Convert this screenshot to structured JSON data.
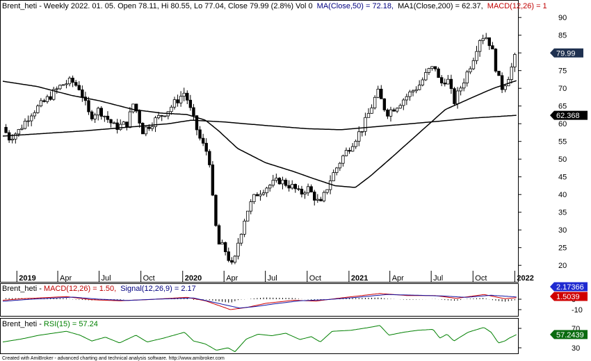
{
  "header": {
    "price_title": "Brent_heti - Weekly 2022. 01. 05. Open 78.11, Hi 80.55, Lo 77.04, Close 79.99 (2.8%) Vol 0",
    "ma50_label": "MA(Close,50) = 72.18,",
    "ma200_label": "MA1(Close,200) = 62.37,",
    "macd_short": "MACD(12,26) = 1",
    "macd_panel_prefix": "Brent_heti - ",
    "macd_label": "MACD(12,26) = 1.50,",
    "signal_label": "Signal(12,26,9) = 2.17",
    "rsi_panel_prefix": "Brent_heti - ",
    "rsi_label": "RSI(15) = 57.24"
  },
  "footer": "Created with AmiBroker - advanced charting and technical analysis software. http://www.amibroker.com",
  "colors": {
    "candle_up": "#ffffff",
    "candle_down": "#000000",
    "ma": "#000000",
    "macd": "#d00000",
    "signal": "#1010a0",
    "rsi": "#008000",
    "badge_price": "#1f3150",
    "badge_ma": "#000000",
    "badge_signal": "#1f2ad0",
    "badge_macd": "#d00000",
    "badge_rsi": "#0a6b10",
    "header_blue": "#000080",
    "header_red": "#c00000",
    "header_green": "#008000"
  },
  "chart_data": [
    {
      "type": "candlestick",
      "title": "Brent_heti - Weekly",
      "ylim": [
        15,
        92
      ],
      "y_ticks": [
        20,
        25,
        30,
        35,
        40,
        45,
        50,
        55,
        60,
        65,
        70,
        75,
        80,
        85,
        90
      ],
      "x_ticks": [
        {
          "label": "2019",
          "date": "2019-01-01",
          "bold": true
        },
        {
          "label": "Apr",
          "date": "2019-04-01",
          "bold": false
        },
        {
          "label": "Jul",
          "date": "2019-07-01",
          "bold": false
        },
        {
          "label": "Oct",
          "date": "2019-10-01",
          "bold": false
        },
        {
          "label": "2020",
          "date": "2020-01-01",
          "bold": true
        },
        {
          "label": "Apr",
          "date": "2020-04-01",
          "bold": false
        },
        {
          "label": "Jul",
          "date": "2020-07-01",
          "bold": false
        },
        {
          "label": "Oct",
          "date": "2020-10-01",
          "bold": false
        },
        {
          "label": "2021",
          "date": "2021-01-01",
          "bold": true
        },
        {
          "label": "Apr",
          "date": "2021-04-01",
          "bold": false
        },
        {
          "label": "Jul",
          "date": "2021-07-01",
          "bold": false
        },
        {
          "label": "Oct",
          "date": "2021-10-01",
          "bold": false
        },
        {
          "label": "2022",
          "date": "2022-01-01",
          "bold": true
        }
      ],
      "close_keypoints": [
        [
          "2018-12-01",
          59
        ],
        [
          "2018-12-15",
          56
        ],
        [
          "2019-01-05",
          58
        ],
        [
          "2019-02-01",
          63
        ],
        [
          "2019-03-01",
          66
        ],
        [
          "2019-04-10",
          71
        ],
        [
          "2019-05-01",
          72
        ],
        [
          "2019-05-20",
          70
        ],
        [
          "2019-06-10",
          62
        ],
        [
          "2019-07-01",
          64
        ],
        [
          "2019-08-05",
          59
        ],
        [
          "2019-09-01",
          60
        ],
        [
          "2019-09-15",
          66
        ],
        [
          "2019-10-05",
          58
        ],
        [
          "2019-11-01",
          61
        ],
        [
          "2019-12-01",
          64
        ],
        [
          "2020-01-06",
          69
        ],
        [
          "2020-01-20",
          63
        ],
        [
          "2020-02-10",
          55
        ],
        [
          "2020-02-28",
          51
        ],
        [
          "2020-03-10",
          34
        ],
        [
          "2020-03-20",
          26
        ],
        [
          "2020-04-01",
          25
        ],
        [
          "2020-04-21",
          19
        ],
        [
          "2020-05-01",
          26
        ],
        [
          "2020-05-20",
          35
        ],
        [
          "2020-06-10",
          40
        ],
        [
          "2020-07-01",
          42
        ],
        [
          "2020-08-01",
          44
        ],
        [
          "2020-09-01",
          42
        ],
        [
          "2020-09-15",
          40
        ],
        [
          "2020-10-01",
          42
        ],
        [
          "2020-10-30",
          37
        ],
        [
          "2020-11-20",
          44
        ],
        [
          "2020-12-15",
          50
        ],
        [
          "2021-01-05",
          54
        ],
        [
          "2021-02-01",
          59
        ],
        [
          "2021-03-05",
          69
        ],
        [
          "2021-03-25",
          63
        ],
        [
          "2021-04-15",
          65
        ],
        [
          "2021-05-10",
          68
        ],
        [
          "2021-06-05",
          71
        ],
        [
          "2021-06-25",
          75
        ],
        [
          "2021-07-10",
          76
        ],
        [
          "2021-07-20",
          71
        ],
        [
          "2021-08-05",
          73
        ],
        [
          "2021-08-20",
          66
        ],
        [
          "2021-09-10",
          72
        ],
        [
          "2021-09-30",
          78
        ],
        [
          "2021-10-15",
          84
        ],
        [
          "2021-10-28",
          85
        ],
        [
          "2021-11-10",
          82
        ],
        [
          "2021-11-25",
          73
        ],
        [
          "2021-12-05",
          70
        ],
        [
          "2021-12-20",
          74
        ],
        [
          "2022-01-05",
          79.99
        ]
      ],
      "ma50_keypoints": [
        [
          "2018-12-01",
          72
        ],
        [
          "2019-02-15",
          70.5
        ],
        [
          "2019-05-01",
          68
        ],
        [
          "2019-07-01",
          66.5
        ],
        [
          "2019-09-15",
          64
        ],
        [
          "2019-11-15",
          63
        ],
        [
          "2020-01-10",
          62.6
        ],
        [
          "2020-02-20",
          61
        ],
        [
          "2020-03-20",
          58
        ],
        [
          "2020-05-01",
          53
        ],
        [
          "2020-07-01",
          49
        ],
        [
          "2020-09-01",
          46.5
        ],
        [
          "2020-10-15",
          44.5
        ],
        [
          "2020-12-01",
          42.5
        ],
        [
          "2021-01-15",
          42
        ],
        [
          "2021-02-15",
          45
        ],
        [
          "2021-04-01",
          50
        ],
        [
          "2021-06-01",
          57
        ],
        [
          "2021-08-01",
          64
        ],
        [
          "2021-10-01",
          67.5
        ],
        [
          "2021-11-15",
          70
        ],
        [
          "2022-01-05",
          72.18
        ]
      ],
      "ma200_keypoints": [
        [
          "2018-12-01",
          56.5
        ],
        [
          "2019-06-01",
          58
        ],
        [
          "2019-12-01",
          60
        ],
        [
          "2020-01-20",
          61
        ],
        [
          "2020-04-01",
          60.5
        ],
        [
          "2020-07-01",
          59.5
        ],
        [
          "2020-10-01",
          58.6
        ],
        [
          "2020-12-15",
          58.3
        ],
        [
          "2021-04-01",
          59.5
        ],
        [
          "2021-07-01",
          60.5
        ],
        [
          "2021-10-01",
          61.6
        ],
        [
          "2022-01-05",
          62.37
        ]
      ],
      "last_close": "79.99",
      "last_ma200": "62.368"
    },
    {
      "type": "line",
      "title": "MACD(12,26)",
      "series": [
        {
          "name": "MACD(12,26)",
          "keypoints": [
            [
              "2018-12-01",
              -1
            ],
            [
              "2019-01-15",
              0.5
            ],
            [
              "2019-04-20",
              2.5
            ],
            [
              "2019-06-15",
              -0.5
            ],
            [
              "2019-08-15",
              -1.5
            ],
            [
              "2019-10-20",
              -0.3
            ],
            [
              "2020-01-10",
              1.8
            ],
            [
              "2020-02-20",
              -1.5
            ],
            [
              "2020-04-15",
              -10
            ],
            [
              "2020-05-20",
              -8
            ],
            [
              "2020-07-01",
              -4
            ],
            [
              "2020-09-01",
              -1
            ],
            [
              "2020-10-20",
              -1.8
            ],
            [
              "2020-12-10",
              1
            ],
            [
              "2021-03-10",
              5.5
            ],
            [
              "2021-05-10",
              3.5
            ],
            [
              "2021-07-10",
              3.5
            ],
            [
              "2021-08-25",
              0.8
            ],
            [
              "2021-10-25",
              4.5
            ],
            [
              "2021-12-10",
              0.5
            ],
            [
              "2022-01-05",
              1.5
            ]
          ]
        },
        {
          "name": "Signal(12,26,9)",
          "keypoints": [
            [
              "2018-12-01",
              -2
            ],
            [
              "2019-02-01",
              0
            ],
            [
              "2019-05-05",
              2
            ],
            [
              "2019-07-01",
              0
            ],
            [
              "2019-09-01",
              -1.2
            ],
            [
              "2019-11-01",
              0
            ],
            [
              "2020-01-25",
              1.2
            ],
            [
              "2020-03-10",
              -3
            ],
            [
              "2020-05-05",
              -8.5
            ],
            [
              "2020-06-10",
              -7
            ],
            [
              "2020-07-20",
              -4.5
            ],
            [
              "2020-09-15",
              -1.5
            ],
            [
              "2020-11-10",
              -0.5
            ],
            [
              "2021-01-10",
              1.5
            ],
            [
              "2021-03-25",
              4.5
            ],
            [
              "2021-06-01",
              3.8
            ],
            [
              "2021-08-01",
              3
            ],
            [
              "2021-09-15",
              1.8
            ],
            [
              "2021-11-10",
              3.8
            ],
            [
              "2022-01-05",
              2.17
            ]
          ]
        }
      ],
      "last_macd": "1.5039",
      "last_signal": "2.17366",
      "y_ticks": [
        0,
        -10
      ]
    },
    {
      "type": "line",
      "title": "RSI(15)",
      "series": [
        {
          "name": "RSI(15)",
          "keypoints": [
            [
              "2018-12-01",
              42
            ],
            [
              "2019-01-10",
              48
            ],
            [
              "2019-02-20",
              56
            ],
            [
              "2019-04-20",
              64
            ],
            [
              "2019-05-20",
              56
            ],
            [
              "2019-06-15",
              44
            ],
            [
              "2019-07-15",
              52
            ],
            [
              "2019-08-15",
              40
            ],
            [
              "2019-09-20",
              56
            ],
            [
              "2019-10-15",
              42
            ],
            [
              "2019-11-20",
              50
            ],
            [
              "2020-01-05",
              62
            ],
            [
              "2020-01-25",
              44
            ],
            [
              "2020-02-20",
              38
            ],
            [
              "2020-03-15",
              25
            ],
            [
              "2020-04-10",
              30
            ],
            [
              "2020-04-25",
              22
            ],
            [
              "2020-05-20",
              48
            ],
            [
              "2020-06-15",
              58
            ],
            [
              "2020-07-15",
              55
            ],
            [
              "2020-08-15",
              60
            ],
            [
              "2020-09-15",
              47
            ],
            [
              "2020-10-10",
              53
            ],
            [
              "2020-10-30",
              42
            ],
            [
              "2020-11-25",
              64
            ],
            [
              "2021-01-05",
              66
            ],
            [
              "2021-02-15",
              72
            ],
            [
              "2021-03-10",
              76
            ],
            [
              "2021-03-30",
              56
            ],
            [
              "2021-05-01",
              62
            ],
            [
              "2021-06-01",
              66
            ],
            [
              "2021-07-05",
              68
            ],
            [
              "2021-07-20",
              50
            ],
            [
              "2021-08-05",
              58
            ],
            [
              "2021-08-20",
              44
            ],
            [
              "2021-09-20",
              62
            ],
            [
              "2021-10-25",
              72
            ],
            [
              "2021-11-10",
              62
            ],
            [
              "2021-11-26",
              40
            ],
            [
              "2021-12-10",
              44
            ],
            [
              "2021-12-20",
              50
            ],
            [
              "2022-01-05",
              57.24
            ]
          ]
        }
      ],
      "last_rsi": "57.2439",
      "y_ticks": [
        70,
        30
      ]
    }
  ]
}
